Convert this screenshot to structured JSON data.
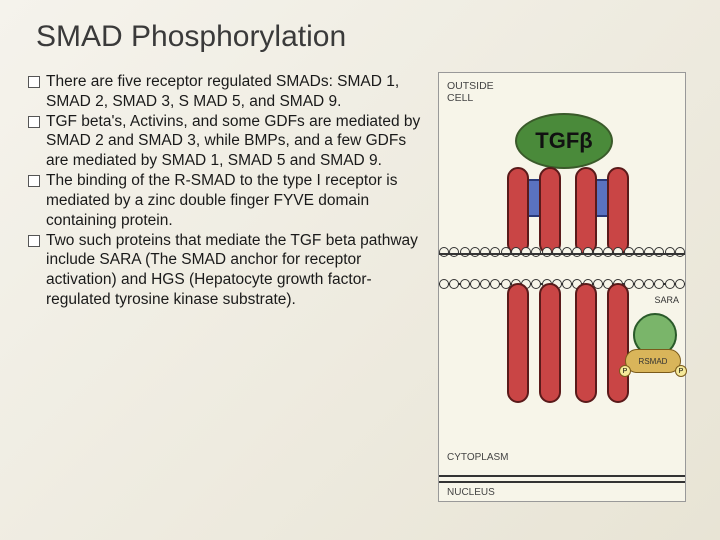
{
  "title": "SMAD Phosphorylation",
  "bullets": [
    "There are five receptor regulated SMADs: SMAD 1, SMAD 2, SMAD 3, S MAD 5, and SMAD 9.",
    " TGF beta's, Activins, and some GDFs are mediated by SMAD 2 and SMAD 3, while BMPs, and a few GDFs are mediated by SMAD 1, SMAD 5 and SMAD 9.",
    " The binding of the R-SMAD to the type I receptor is mediated by a zinc double finger FYVE domain containing protein.",
    "Two such proteins that mediate the TGF beta pathway include SARA (The SMAD anchor for receptor activation) and HGS (Hepatocyte growth factor-regulated tyrosine kinase substrate)."
  ],
  "diagram": {
    "labels": {
      "outside": "OUTSIDE\nCELL",
      "tgfb": "TGFβ",
      "sara": "SARA",
      "rsmad": "RSMAD",
      "p": "P",
      "cytoplasm": "CYTOPLASM",
      "nucleus": "NUCLEUS"
    },
    "colors": {
      "background": "#f7f5e9",
      "tgfb_fill": "#4a8a3a",
      "tgfb_border": "#3a5a2a",
      "receptor_fill": "#c94545",
      "receptor_border": "#5a1a1a",
      "bluebox_fill": "#5a72c0",
      "bluebox_border": "#2a3a7a",
      "sara_fill": "#7ab56a",
      "rsmad_fill": "#d9b55a",
      "p_fill": "#f5e99a",
      "membrane": "#333333"
    },
    "membrane_circle_count": 24
  }
}
